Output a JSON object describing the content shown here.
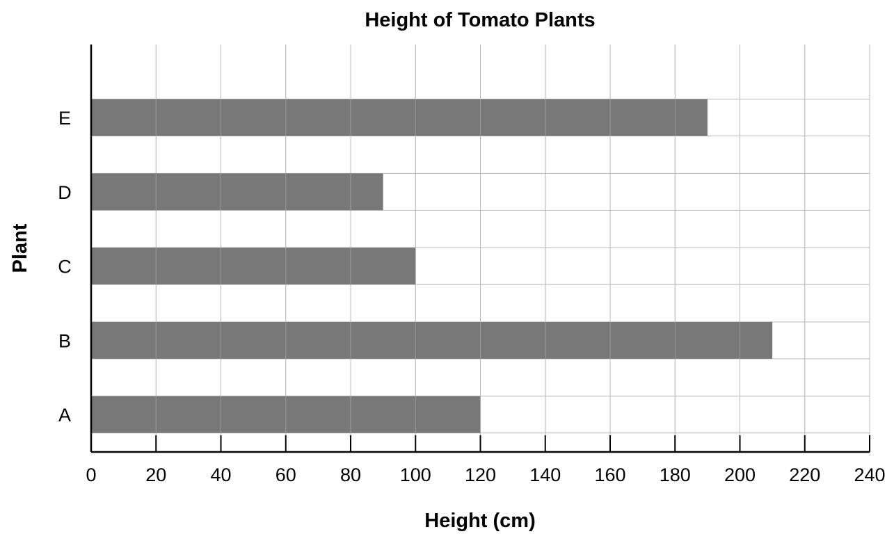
{
  "chart_data": {
    "type": "bar",
    "orientation": "horizontal",
    "title": "Height of Tomato Plants",
    "xlabel": "Height (cm)",
    "ylabel": "Plant",
    "categories": [
      "A",
      "B",
      "C",
      "D",
      "E"
    ],
    "values": [
      120,
      210,
      100,
      90,
      190
    ],
    "xlim": [
      0,
      240
    ],
    "xticks": [
      0,
      20,
      40,
      60,
      80,
      100,
      120,
      140,
      160,
      180,
      200,
      220,
      240
    ],
    "grid": true,
    "bar_color": "#787878",
    "grid_color": "#b8b8b8"
  }
}
